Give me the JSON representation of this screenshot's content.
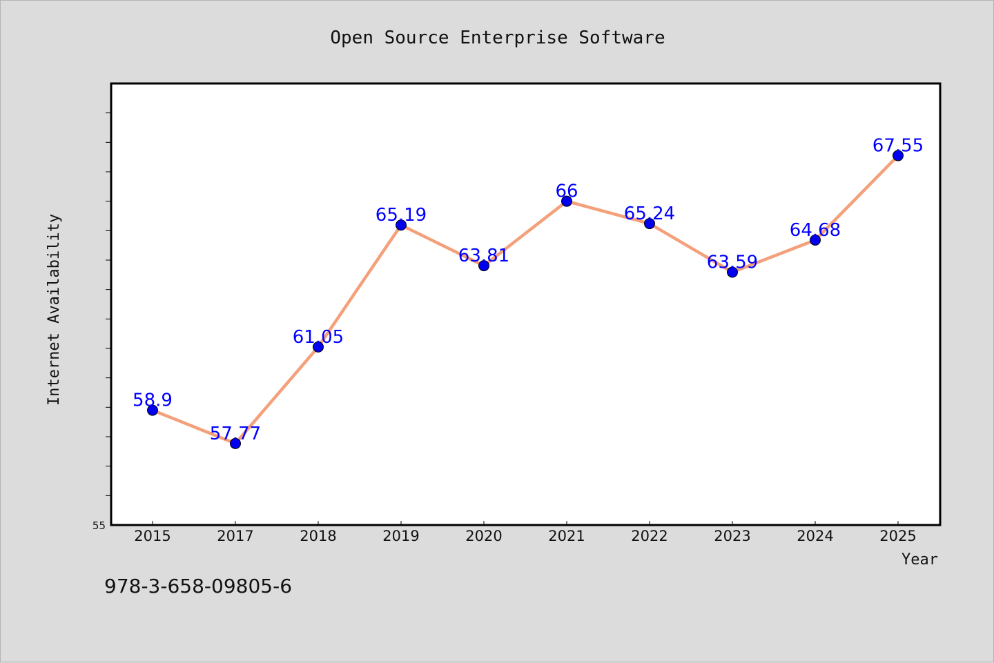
{
  "chart_data": {
    "type": "line",
    "title": "Open Source Enterprise Software",
    "xlabel": "Year",
    "ylabel": "Internet Availability",
    "categories": [
      "2015",
      "2017",
      "2018",
      "2019",
      "2020",
      "2021",
      "2022",
      "2023",
      "2024",
      "2025"
    ],
    "values": [
      58.9,
      57.77,
      61.05,
      65.19,
      63.81,
      66,
      65.24,
      63.59,
      64.68,
      67.55
    ],
    "data_labels": [
      "58.9",
      "57.77",
      "61.05",
      "65.19",
      "63.81",
      "66",
      "65.24",
      "63.59",
      "64.68",
      "67.55"
    ],
    "y_tick_labels": [
      "55"
    ],
    "ylim": [
      55,
      70
    ],
    "grid": false,
    "line_color": "#f4a07a",
    "marker_color": "#0000ee",
    "label_color": "#0000ff"
  },
  "footer_text": "978-3-658-09805-6"
}
